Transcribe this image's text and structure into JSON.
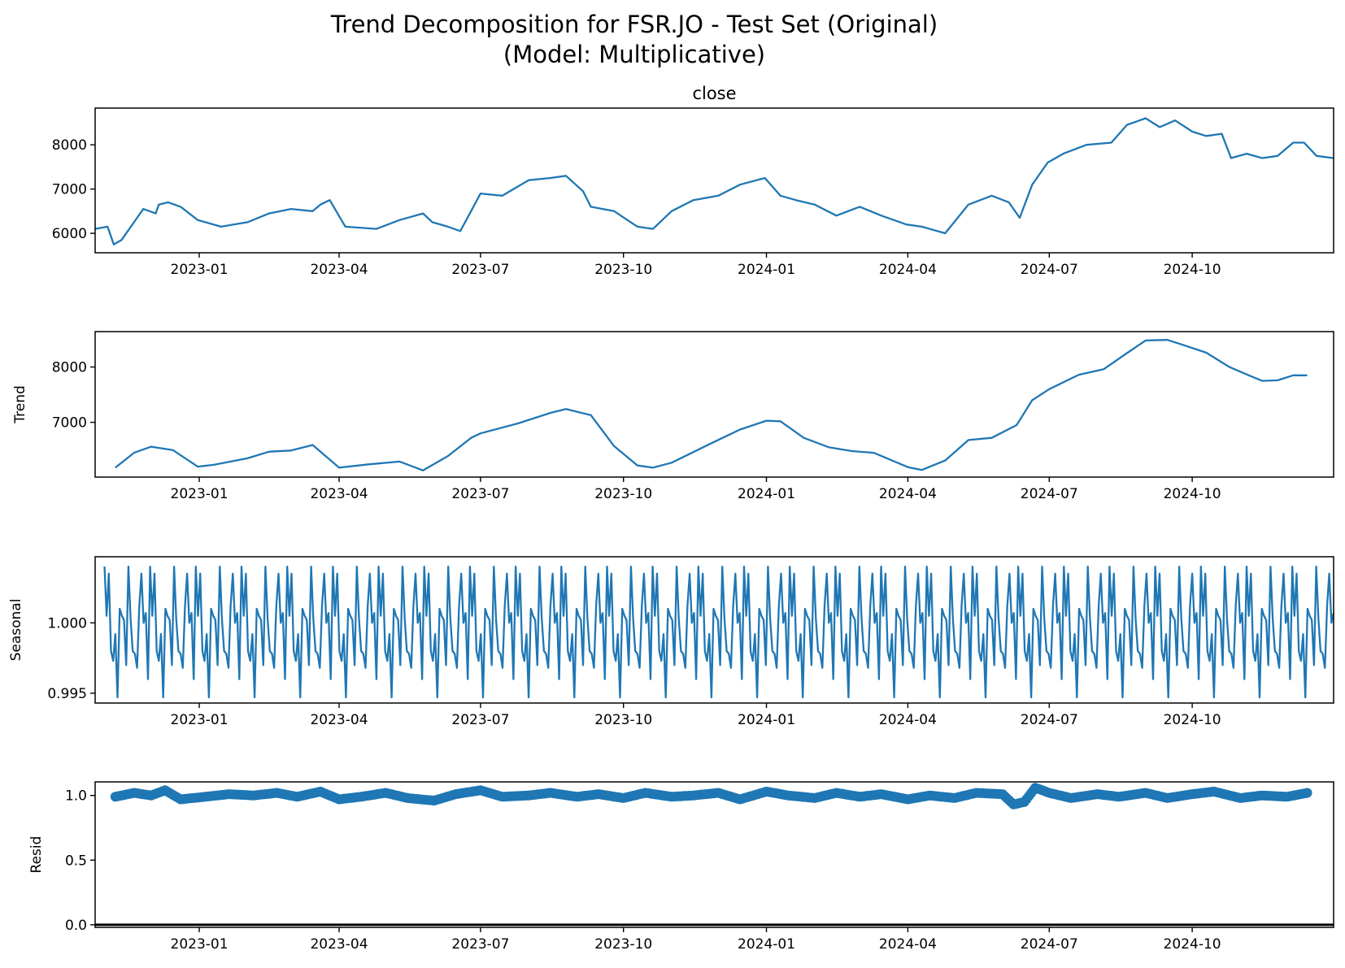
{
  "figure": {
    "title_line1": "Trend Decomposition for FSR.JO - Test Set (Original)",
    "title_line2": "(Model: Multiplicative)"
  },
  "colors": {
    "series": "#1f77b4",
    "axis": "#000000",
    "background": "#ffffff"
  },
  "chart_data": [
    {
      "type": "line",
      "panel": "close",
      "title": "close",
      "ylabel": "",
      "x_range": [
        "2022-10-26",
        "2024-12-31"
      ],
      "ylim": [
        5560,
        8830
      ],
      "yticks": [
        6000,
        7000,
        8000
      ],
      "ytick_labels": [
        "6000",
        "7000",
        "8000"
      ],
      "xticks": [
        "2023-01-01",
        "2023-04-01",
        "2023-07-01",
        "2023-10-01",
        "2024-01-01",
        "2024-04-01",
        "2024-07-01",
        "2024-10-01"
      ],
      "xtick_labels": [
        "2023-01",
        "2023-04",
        "2023-07",
        "2023-10",
        "2024-01",
        "2024-04",
        "2024-07",
        "2024-10"
      ],
      "grid": false,
      "series": [
        {
          "x": [
            "2022-10-26",
            "2022-11-03",
            "2022-11-07",
            "2022-11-12",
            "2022-11-20",
            "2022-11-26",
            "2022-12-04",
            "2022-12-06",
            "2022-12-12",
            "2022-12-20",
            "2022-12-31",
            "2023-01-15",
            "2023-02-01",
            "2023-02-15",
            "2023-03-01",
            "2023-03-15",
            "2023-03-20",
            "2023-03-26",
            "2023-04-05",
            "2023-04-25",
            "2023-05-10",
            "2023-05-25",
            "2023-05-31",
            "2023-06-10",
            "2023-06-18",
            "2023-07-01",
            "2023-07-15",
            "2023-08-01",
            "2023-08-15",
            "2023-08-25",
            "2023-09-05",
            "2023-09-10",
            "2023-09-25",
            "2023-10-10",
            "2023-10-20",
            "2023-11-01",
            "2023-11-15",
            "2023-12-01",
            "2023-12-15",
            "2023-12-31",
            "2024-01-10",
            "2024-01-20",
            "2024-02-01",
            "2024-02-15",
            "2024-03-01",
            "2024-03-15",
            "2024-03-31",
            "2024-04-10",
            "2024-04-25",
            "2024-05-10",
            "2024-05-25",
            "2024-06-05",
            "2024-06-12",
            "2024-06-20",
            "2024-06-30",
            "2024-07-10",
            "2024-07-25",
            "2024-08-10",
            "2024-08-20",
            "2024-09-01",
            "2024-09-10",
            "2024-09-20",
            "2024-10-01",
            "2024-10-10",
            "2024-10-20",
            "2024-10-26",
            "2024-11-05",
            "2024-11-15",
            "2024-11-25",
            "2024-12-05",
            "2024-12-12",
            "2024-12-20",
            "2024-12-31"
          ],
          "values": [
            6100,
            6150,
            5750,
            5850,
            6250,
            6550,
            6450,
            6650,
            6700,
            6600,
            6300,
            6150,
            6250,
            6450,
            6550,
            6500,
            6650,
            6750,
            6150,
            6100,
            6300,
            6450,
            6250,
            6150,
            6050,
            6900,
            6850,
            7200,
            7250,
            7300,
            6950,
            6600,
            6500,
            6150,
            6100,
            6500,
            6750,
            6850,
            7100,
            7250,
            6850,
            6750,
            6650,
            6400,
            6600,
            6400,
            6200,
            6150,
            6000,
            6650,
            6850,
            6700,
            6350,
            7100,
            7600,
            7800,
            8000,
            8050,
            8450,
            8600,
            8400,
            8550,
            8300,
            8200,
            8250,
            7700,
            7800,
            7700,
            7750,
            8050,
            8050,
            7750,
            7700
          ]
        }
      ]
    },
    {
      "type": "line",
      "panel": "trend",
      "title": "",
      "ylabel": "Trend",
      "x_range": [
        "2022-10-26",
        "2024-12-31"
      ],
      "ylim": [
        6010,
        8640
      ],
      "yticks": [
        7000,
        8000
      ],
      "ytick_labels": [
        "7000",
        "8000"
      ],
      "xticks": [
        "2023-01-01",
        "2023-04-01",
        "2023-07-01",
        "2023-10-01",
        "2024-01-01",
        "2024-04-01",
        "2024-07-01",
        "2024-10-01"
      ],
      "xtick_labels": [
        "2023-01",
        "2023-04",
        "2023-07",
        "2023-10",
        "2024-01",
        "2024-04",
        "2024-07",
        "2024-10"
      ],
      "grid": false,
      "series": [
        {
          "x": [
            "2022-11-08",
            "2022-11-20",
            "2022-12-01",
            "2022-12-15",
            "2022-12-31",
            "2023-01-10",
            "2023-02-01",
            "2023-02-15",
            "2023-03-01",
            "2023-03-15",
            "2023-04-01",
            "2023-04-20",
            "2023-05-10",
            "2023-05-25",
            "2023-06-10",
            "2023-06-25",
            "2023-07-01",
            "2023-07-25",
            "2023-08-15",
            "2023-08-25",
            "2023-09-10",
            "2023-09-25",
            "2023-10-10",
            "2023-10-20",
            "2023-11-01",
            "2023-11-25",
            "2023-12-15",
            "2024-01-01",
            "2024-01-10",
            "2024-01-25",
            "2024-02-10",
            "2024-02-25",
            "2024-03-10",
            "2024-04-01",
            "2024-04-10",
            "2024-04-25",
            "2024-05-10",
            "2024-05-25",
            "2024-06-10",
            "2024-06-20",
            "2024-07-01",
            "2024-07-20",
            "2024-08-05",
            "2024-08-20",
            "2024-09-01",
            "2024-09-15",
            "2024-09-25",
            "2024-10-10",
            "2024-10-25",
            "2024-11-08",
            "2024-11-15",
            "2024-11-25",
            "2024-12-05",
            "2024-12-14"
          ],
          "values": [
            6180,
            6450,
            6560,
            6500,
            6200,
            6230,
            6350,
            6470,
            6490,
            6590,
            6180,
            6240,
            6290,
            6130,
            6390,
            6720,
            6800,
            6980,
            7170,
            7240,
            7130,
            6570,
            6220,
            6180,
            6270,
            6600,
            6870,
            7030,
            7020,
            6720,
            6550,
            6480,
            6450,
            6190,
            6140,
            6310,
            6680,
            6720,
            6950,
            7400,
            7600,
            7860,
            7960,
            8250,
            8480,
            8490,
            8400,
            8260,
            8000,
            7830,
            7750,
            7760,
            7850,
            7850
          ]
        }
      ]
    },
    {
      "type": "line",
      "panel": "seasonal",
      "title": "",
      "ylabel": "Seasonal",
      "x_range": [
        "2022-10-26",
        "2024-12-31"
      ],
      "ylim": [
        0.9943,
        1.0047
      ],
      "yticks": [
        0.995,
        1.0
      ],
      "ytick_labels": [
        "0.995",
        "1.000"
      ],
      "xticks": [
        "2023-01-01",
        "2023-04-01",
        "2023-07-01",
        "2023-10-01",
        "2024-01-01",
        "2024-04-01",
        "2024-07-01",
        "2024-10-01"
      ],
      "xtick_labels": [
        "2023-01",
        "2023-04",
        "2023-07",
        "2023-10",
        "2024-01",
        "2024-04",
        "2024-07",
        "2024-10"
      ],
      "grid": false,
      "series": [
        {
          "start": "2022-11-01",
          "end": "2024-12-31",
          "period_points": 21,
          "pattern": [
            1.004,
            1.0005,
            1.0035,
            0.998,
            0.9973,
            0.9992,
            0.9947,
            1.001,
            1.0005,
            1.0002,
            0.997,
            1.004,
            1.0003,
            0.998,
            0.9978,
            0.9968,
            1.0012,
            1.0035,
            1.0,
            1.0007,
            0.996
          ]
        }
      ]
    },
    {
      "type": "scatter",
      "panel": "resid",
      "title": "",
      "ylabel": "Resid",
      "x_range": [
        "2022-10-26",
        "2024-12-31"
      ],
      "ylim": [
        -0.02,
        1.105
      ],
      "yticks": [
        0.0,
        0.5,
        1.0
      ],
      "ytick_labels": [
        "0.0",
        "0.5",
        "1.0"
      ],
      "xticks": [
        "2023-01-01",
        "2023-04-01",
        "2023-07-01",
        "2023-10-01",
        "2024-01-01",
        "2024-04-01",
        "2024-07-01",
        "2024-10-01"
      ],
      "xtick_labels": [
        "2023-01",
        "2023-04",
        "2023-07",
        "2023-10",
        "2024-01",
        "2024-04",
        "2024-07",
        "2024-10"
      ],
      "grid": false,
      "baseline": 0.0,
      "series": [
        {
          "x": [
            "2022-11-08",
            "2022-11-20",
            "2022-12-01",
            "2022-12-10",
            "2022-12-20",
            "2023-01-05",
            "2023-01-20",
            "2023-02-05",
            "2023-02-20",
            "2023-03-05",
            "2023-03-20",
            "2023-04-01",
            "2023-04-15",
            "2023-05-01",
            "2023-05-15",
            "2023-06-01",
            "2023-06-15",
            "2023-07-01",
            "2023-07-15",
            "2023-08-01",
            "2023-08-15",
            "2023-09-01",
            "2023-09-15",
            "2023-10-01",
            "2023-10-15",
            "2023-11-01",
            "2023-11-15",
            "2023-12-01",
            "2023-12-15",
            "2024-01-01",
            "2024-01-15",
            "2024-02-01",
            "2024-02-15",
            "2024-03-01",
            "2024-03-15",
            "2024-04-01",
            "2024-04-15",
            "2024-05-01",
            "2024-05-15",
            "2024-06-01",
            "2024-06-08",
            "2024-06-15",
            "2024-06-22",
            "2024-07-01",
            "2024-07-15",
            "2024-08-01",
            "2024-08-15",
            "2024-09-01",
            "2024-09-15",
            "2024-10-01",
            "2024-10-15",
            "2024-11-01",
            "2024-11-15",
            "2024-12-01",
            "2024-12-14"
          ],
          "values": [
            0.99,
            1.02,
            1.0,
            1.04,
            0.97,
            0.99,
            1.01,
            1.0,
            1.02,
            0.99,
            1.03,
            0.97,
            0.99,
            1.02,
            0.98,
            0.96,
            1.01,
            1.04,
            0.99,
            1.0,
            1.02,
            0.99,
            1.01,
            0.98,
            1.02,
            0.99,
            1.0,
            1.02,
            0.97,
            1.03,
            1.0,
            0.98,
            1.02,
            0.99,
            1.01,
            0.97,
            1.0,
            0.98,
            1.02,
            1.01,
            0.93,
            0.95,
            1.06,
            1.02,
            0.98,
            1.01,
            0.99,
            1.02,
            0.98,
            1.01,
            1.03,
            0.98,
            1.0,
            0.99,
            1.02
          ]
        }
      ]
    }
  ]
}
